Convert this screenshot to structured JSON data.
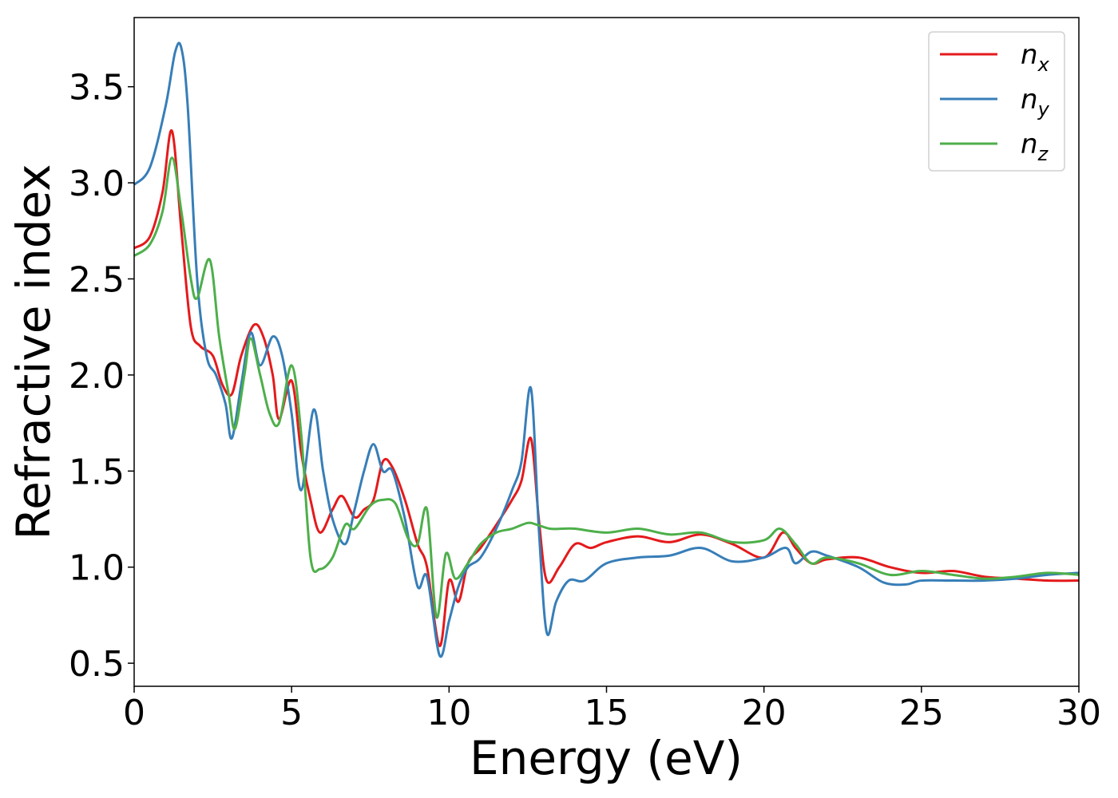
{
  "chart_data": {
    "type": "line",
    "xlabel": "Energy (eV)",
    "ylabel": "Refractive index",
    "xlim": [
      0,
      30
    ],
    "ylim": [
      0.38,
      3.86
    ],
    "x_ticks": [
      0,
      5,
      10,
      15,
      20,
      25,
      30
    ],
    "x_tick_labels": [
      "0",
      "5",
      "10",
      "15",
      "20",
      "25",
      "30"
    ],
    "y_ticks": [
      0.5,
      1.0,
      1.5,
      2.0,
      2.5,
      3.0,
      3.5
    ],
    "y_tick_labels": [
      "0.5",
      "1.0",
      "1.5",
      "2.0",
      "2.5",
      "3.0",
      "3.5"
    ],
    "grid": false,
    "legend_position": "top-right",
    "series": [
      {
        "name": "n_x",
        "label_base": "n",
        "label_sub": "x",
        "color": "#e41a1c",
        "x": [
          0,
          0.5,
          0.9,
          1.2,
          1.5,
          1.8,
          2.1,
          2.5,
          2.8,
          3.1,
          3.4,
          3.8,
          4.1,
          4.4,
          4.6,
          5.0,
          5.3,
          5.6,
          5.9,
          6.3,
          6.6,
          7.0,
          7.3,
          7.6,
          7.9,
          8.2,
          8.6,
          9.0,
          9.3,
          9.7,
          10.0,
          10.3,
          10.6,
          11.0,
          11.5,
          12.0,
          12.3,
          12.6,
          12.85,
          13.1,
          13.5,
          14.0,
          14.5,
          15.0,
          16.0,
          17.0,
          18.0,
          19.0,
          20.0,
          20.6,
          21.0,
          21.5,
          22.0,
          23.0,
          24.0,
          25.0,
          26.0,
          27.0,
          28.0,
          29.0,
          30.0
        ],
        "y": [
          2.66,
          2.72,
          2.95,
          3.27,
          2.75,
          2.25,
          2.15,
          2.1,
          1.95,
          1.9,
          2.1,
          2.26,
          2.2,
          2.0,
          1.77,
          1.97,
          1.6,
          1.35,
          1.18,
          1.3,
          1.37,
          1.26,
          1.3,
          1.35,
          1.55,
          1.52,
          1.35,
          1.12,
          1.0,
          0.59,
          0.93,
          0.82,
          1.02,
          1.1,
          1.22,
          1.35,
          1.45,
          1.67,
          1.25,
          0.93,
          1.0,
          1.12,
          1.1,
          1.13,
          1.16,
          1.13,
          1.17,
          1.12,
          1.05,
          1.18,
          1.1,
          1.02,
          1.04,
          1.05,
          1.0,
          0.97,
          0.98,
          0.95,
          0.94,
          0.93,
          0.93
        ]
      },
      {
        "name": "n_y",
        "label_base": "n",
        "label_sub": "y",
        "color": "#377eb8",
        "x": [
          0,
          0.5,
          1.0,
          1.3,
          1.5,
          1.7,
          2.0,
          2.3,
          2.6,
          2.9,
          3.1,
          3.4,
          3.7,
          4.0,
          4.4,
          4.7,
          5.0,
          5.3,
          5.7,
          6.0,
          6.3,
          6.7,
          7.0,
          7.3,
          7.6,
          7.9,
          8.2,
          8.6,
          9.0,
          9.3,
          9.7,
          10.0,
          10.3,
          10.6,
          11.0,
          11.5,
          12.0,
          12.3,
          12.6,
          12.85,
          13.1,
          13.4,
          13.8,
          14.3,
          15.0,
          16.0,
          17.0,
          18.0,
          19.0,
          20.0,
          20.7,
          21.0,
          21.5,
          22.0,
          23.0,
          23.8,
          24.5,
          25.0,
          26.0,
          27.0,
          28.0,
          29.0,
          30.0
        ],
        "y": [
          2.99,
          3.08,
          3.4,
          3.68,
          3.7,
          3.4,
          2.5,
          2.1,
          2.0,
          1.85,
          1.67,
          1.95,
          2.22,
          2.05,
          2.2,
          2.1,
          1.8,
          1.4,
          1.82,
          1.5,
          1.25,
          1.12,
          1.3,
          1.5,
          1.64,
          1.5,
          1.5,
          1.25,
          0.9,
          0.95,
          0.54,
          0.72,
          0.9,
          1.0,
          1.05,
          1.2,
          1.4,
          1.55,
          1.93,
          1.2,
          0.66,
          0.82,
          0.93,
          0.93,
          1.02,
          1.05,
          1.06,
          1.1,
          1.03,
          1.05,
          1.1,
          1.02,
          1.08,
          1.06,
          1.0,
          0.92,
          0.91,
          0.93,
          0.93,
          0.93,
          0.94,
          0.96,
          0.97
        ]
      },
      {
        "name": "n_z",
        "label_base": "n",
        "label_sub": "z",
        "color": "#4daf4a",
        "x": [
          0,
          0.5,
          0.9,
          1.2,
          1.5,
          1.8,
          2.0,
          2.4,
          2.7,
          3.0,
          3.2,
          3.5,
          3.7,
          4.0,
          4.3,
          4.6,
          5.0,
          5.3,
          5.6,
          5.9,
          6.3,
          6.7,
          7.0,
          7.5,
          7.9,
          8.3,
          8.7,
          9.0,
          9.3,
          9.6,
          9.9,
          10.2,
          10.6,
          11.0,
          11.5,
          12.0,
          12.5,
          12.8,
          13.2,
          13.6,
          14.0,
          15.0,
          16.0,
          17.0,
          18.0,
          19.0,
          20.0,
          20.5,
          21.0,
          21.5,
          22.0,
          23.0,
          24.0,
          25.0,
          26.0,
          27.0,
          28.0,
          29.0,
          30.0
        ],
        "y": [
          2.62,
          2.68,
          2.85,
          3.13,
          2.85,
          2.5,
          2.4,
          2.6,
          2.2,
          1.9,
          1.72,
          2.0,
          2.19,
          2.0,
          1.8,
          1.75,
          2.05,
          1.7,
          1.05,
          0.99,
          1.05,
          1.22,
          1.2,
          1.32,
          1.35,
          1.33,
          1.15,
          1.12,
          1.3,
          0.74,
          1.07,
          0.94,
          1.02,
          1.12,
          1.18,
          1.2,
          1.23,
          1.22,
          1.2,
          1.2,
          1.2,
          1.18,
          1.2,
          1.17,
          1.18,
          1.13,
          1.14,
          1.2,
          1.12,
          1.02,
          1.05,
          1.02,
          0.96,
          0.98,
          0.96,
          0.94,
          0.95,
          0.97,
          0.96
        ]
      }
    ]
  }
}
